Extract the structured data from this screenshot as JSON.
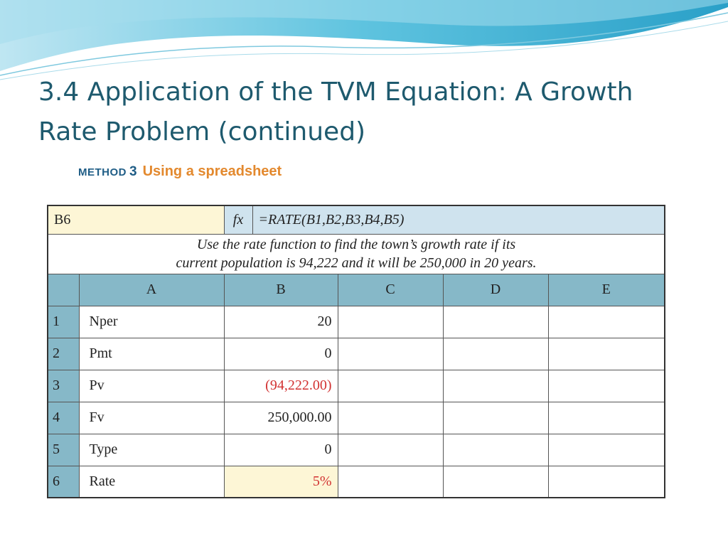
{
  "slide": {
    "title_line1": "3.4  Application of the TVM Equation: A Growth",
    "title_line2": "Rate Problem (continued)"
  },
  "method": {
    "word": "METHOD",
    "number": "3",
    "title": "Using a spreadsheet"
  },
  "spreadsheet": {
    "cell_reference": "B6",
    "fx_label": "fx",
    "formula": "=RATE(B1,B2,B3,B4,B5)",
    "instructions_line1": "Use the rate function to find the town’s growth rate if its",
    "instructions_line2": "current population is 94,222 and it will be 250,000 in 20 years.",
    "columns": [
      "A",
      "B",
      "C",
      "D",
      "E"
    ],
    "rows": [
      {
        "num": "1",
        "label": "Nper",
        "value": "20"
      },
      {
        "num": "2",
        "label": "Pmt",
        "value": "0"
      },
      {
        "num": "3",
        "label": "Pv",
        "value": "(94,222.00)"
      },
      {
        "num": "4",
        "label": "Fv",
        "value": "250,000.00"
      },
      {
        "num": "5",
        "label": "Type",
        "value": "0"
      },
      {
        "num": "6",
        "label": "Rate",
        "value": "5%"
      }
    ]
  },
  "colors": {
    "title": "#1e5a6e",
    "header_fill": "#86b8c8",
    "formula_bar_fill": "#cfe3ee",
    "highlight_fill": "#fdf6d6",
    "negative_text": "#d23232",
    "method_title": "#e3892e"
  }
}
